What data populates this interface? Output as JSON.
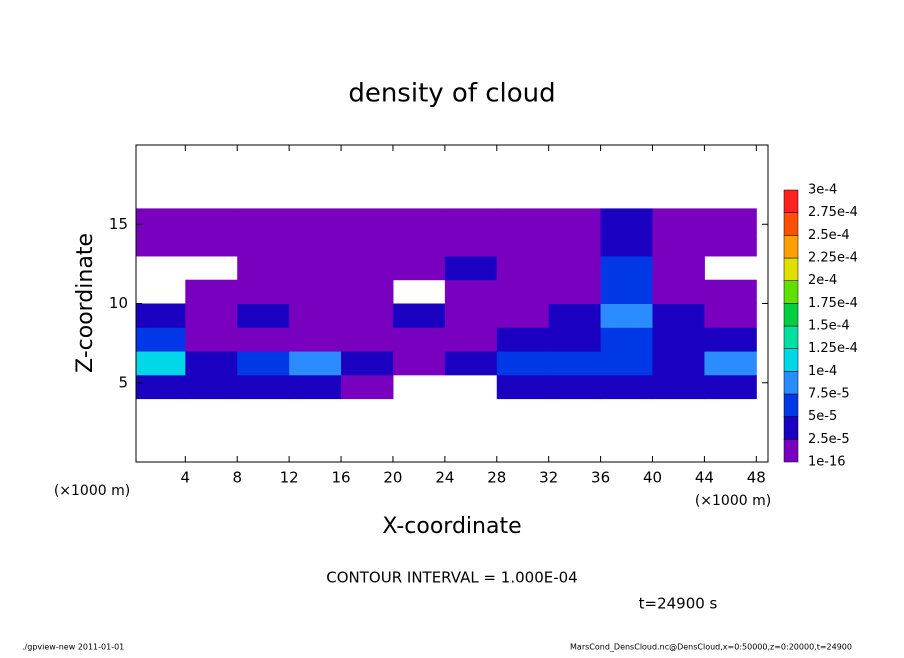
{
  "chart_data": {
    "type": "contour",
    "title": "density of cloud",
    "x_label": "X-coordinate",
    "y_label": "Z-coordinate",
    "x_unit_label": "(×1000 m)",
    "y_unit_label": "(×1000 m)",
    "contour_interval_text": "CONTOUR INTERVAL = 1.000E-04",
    "time_text": "t=24900 s",
    "footer_left": "./gpview-new   2011-01-01",
    "footer_right": "MarsCond_DensCloud.nc@DensCloud,x=0:50000,z=0:20000,t=24900",
    "xlim": [
      0.2,
      48.9
    ],
    "ylim": [
      0,
      20
    ],
    "xticks": [
      4,
      8,
      12,
      16,
      20,
      24,
      28,
      32,
      36,
      40,
      44,
      48
    ],
    "yticks": [
      5,
      10,
      15
    ],
    "x": [
      2,
      6,
      10,
      14,
      18,
      22,
      26,
      30,
      34,
      38,
      42,
      46
    ],
    "z": [
      4.75,
      6.25,
      7.75,
      9.25,
      10.75,
      12.25,
      13.75,
      15.25
    ],
    "values": [
      [
        4e-05,
        4e-05,
        4e-05,
        4e-05,
        1e-05,
        null,
        null,
        4e-05,
        4e-05,
        4e-05,
        3e-05,
        4e-05
      ],
      [
        0.00012,
        4e-05,
        5e-05,
        8e-05,
        3e-05,
        1e-05,
        3e-05,
        7e-05,
        5e-05,
        5e-05,
        4e-05,
        9e-05
      ],
      [
        5e-05,
        2e-05,
        1e-05,
        2e-05,
        1e-05,
        1e-05,
        2e-05,
        3e-05,
        4e-05,
        7e-05,
        3e-05,
        4e-05
      ],
      [
        3e-05,
        1e-05,
        3e-05,
        1e-05,
        2e-05,
        3e-05,
        1e-05,
        2e-05,
        3e-05,
        8e-05,
        3e-05,
        2e-05
      ],
      [
        null,
        1e-05,
        2e-05,
        1e-05,
        1e-05,
        null,
        2e-05,
        1e-05,
        2e-05,
        6e-05,
        2e-05,
        1e-05
      ],
      [
        null,
        null,
        2e-05,
        2e-05,
        1e-05,
        1e-05,
        3e-05,
        1e-05,
        1e-05,
        5e-05,
        1e-05,
        null
      ],
      [
        1.5e-05,
        1.5e-05,
        1.5e-05,
        1.5e-05,
        1.5e-05,
        1.5e-05,
        1.5e-05,
        1.5e-05,
        1.5e-05,
        4e-05,
        1.5e-05,
        1.5e-05
      ],
      [
        1e-05,
        1e-05,
        1e-05,
        1e-05,
        1e-05,
        1e-05,
        1e-05,
        1e-05,
        1e-05,
        3e-05,
        1e-05,
        1e-05
      ]
    ],
    "levels": [
      {
        "value": 1e-16,
        "label": "1e-16"
      },
      {
        "value": 2.5e-05,
        "label": "2.5e-5"
      },
      {
        "value": 5e-05,
        "label": "5e-5"
      },
      {
        "value": 7.5e-05,
        "label": "7.5e-5"
      },
      {
        "value": 0.0001,
        "label": "1e-4"
      },
      {
        "value": 0.000125,
        "label": "1.25e-4"
      },
      {
        "value": 0.00015,
        "label": "1.5e-4"
      },
      {
        "value": 0.000175,
        "label": "1.75e-4"
      },
      {
        "value": 0.0002,
        "label": "2e-4"
      },
      {
        "value": 0.000225,
        "label": "2.25e-4"
      },
      {
        "value": 0.00025,
        "label": "2.5e-4"
      },
      {
        "value": 0.000275,
        "label": "2.75e-4"
      },
      {
        "value": 0.0003,
        "label": "3e-4"
      }
    ],
    "colors": [
      "#7a00bf",
      "#1a00c0",
      "#0038e8",
      "#2a8cff",
      "#00d8e8",
      "#00e0a0",
      "#00d040",
      "#60e000",
      "#e0e000",
      "#ffa000",
      "#ff5000",
      "#ff2020",
      "#ff8080"
    ]
  }
}
